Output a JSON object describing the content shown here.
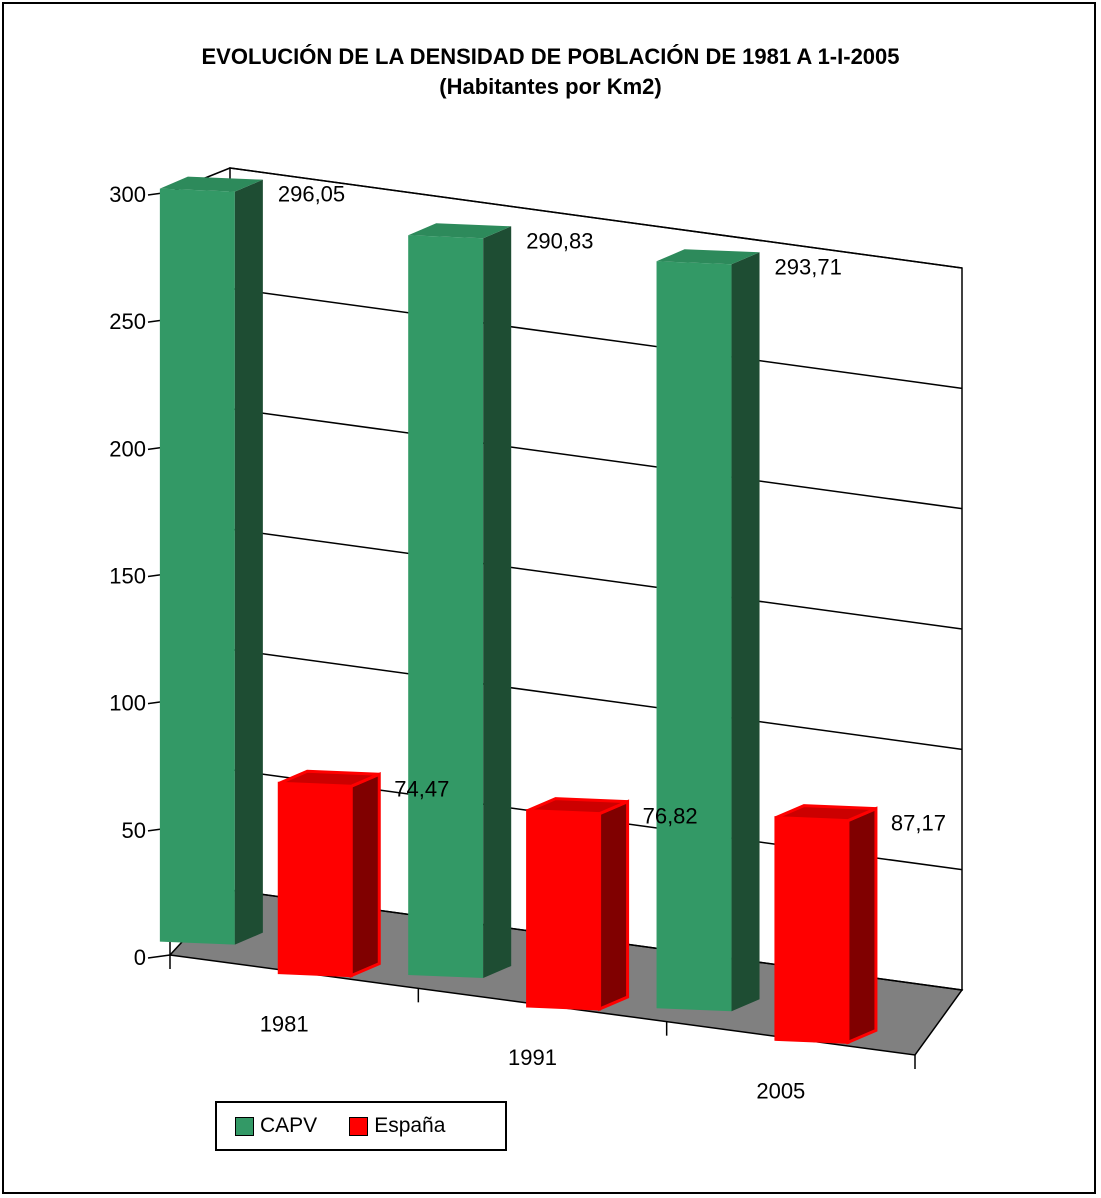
{
  "chart_data": {
    "type": "bar",
    "title": "EVOLUCIÓN DE LA DENSIDAD DE POBLACIÓN DE 1981 A 1-I-2005",
    "subtitle": "(Habitantes por Km2)",
    "categories": [
      "1981",
      "1991",
      "2005"
    ],
    "series": [
      {
        "name": "CAPV",
        "values": [
          296.05,
          290.83,
          293.71
        ],
        "labels": [
          "296,05",
          "290,83",
          "293,71"
        ],
        "color": "#339966"
      },
      {
        "name": "España",
        "values": [
          74.47,
          76.82,
          87.17
        ],
        "labels": [
          "74,47",
          "76,82",
          "87,17"
        ],
        "color": "#ff0000"
      }
    ],
    "ylim": [
      0,
      300
    ],
    "yticks": [
      0,
      50,
      100,
      150,
      200,
      250,
      300
    ],
    "grid": true,
    "legend_placement": "bottom-left",
    "floor_color": "#808080"
  }
}
